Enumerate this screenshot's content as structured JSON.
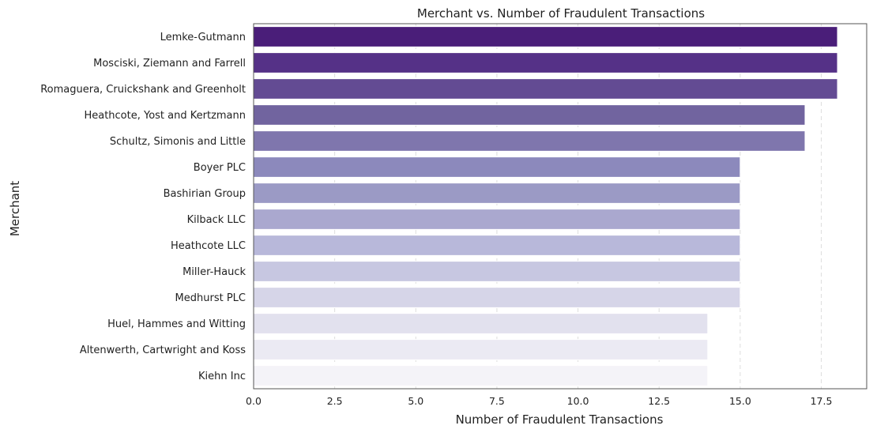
{
  "chart_data": {
    "type": "bar",
    "orientation": "horizontal",
    "title": "Merchant vs. Number of Fraudulent Transactions",
    "xlabel": "Number of Fraudulent Transactions",
    "ylabel": "Merchant",
    "xlim": [
      0,
      18.9
    ],
    "xticks": [
      0.0,
      2.5,
      5.0,
      7.5,
      10.0,
      12.5,
      15.0,
      17.5
    ],
    "xtick_labels": [
      "0.0",
      "2.5",
      "5.0",
      "7.5",
      "10.0",
      "12.5",
      "15.0",
      "17.5"
    ],
    "grid": "x, dashed",
    "colormap": "Purples (dark to light, top to bottom)",
    "categories": [
      "Lemke-Gutmann",
      "Mosciski, Ziemann and Farrell",
      "Romaguera, Cruickshank and Greenholt",
      "Heathcote, Yost and Kertzmann",
      "Schultz, Simonis and Little",
      "Boyer PLC",
      "Bashirian Group",
      "Kilback LLC",
      "Heathcote LLC",
      "Miller-Hauck",
      "Medhurst PLC",
      "Huel, Hammes and Witting",
      "Altenwerth, Cartwright and Koss",
      "Kiehn Inc"
    ],
    "values": [
      18,
      18,
      18,
      17,
      17,
      15,
      15,
      15,
      15,
      15,
      15,
      14,
      14,
      14
    ],
    "colors": [
      "#4a1e79",
      "#553187",
      "#634b93",
      "#71649f",
      "#7f76ad",
      "#8c89bc",
      "#9b9ac5",
      "#aaa8cf",
      "#b8b8da",
      "#c7c7e1",
      "#d6d5e8",
      "#e2e1ee",
      "#ebeaf3",
      "#f4f3f8"
    ]
  }
}
